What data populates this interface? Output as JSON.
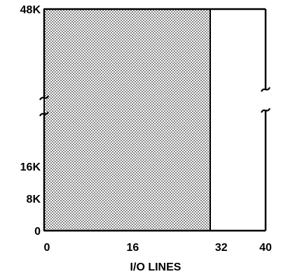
{
  "chart_data": {
    "type": "area",
    "title": "",
    "xlabel": "I/O LINES",
    "ylabel": "",
    "x_ticks": [
      {
        "value": 0,
        "label": "0"
      },
      {
        "value": 16,
        "label": "16"
      },
      {
        "value": 32,
        "label": "32"
      },
      {
        "value": 40,
        "label": "40"
      }
    ],
    "y_ticks": [
      {
        "value": 0,
        "label": "0"
      },
      {
        "value": 8,
        "label": "8K"
      },
      {
        "value": 16,
        "label": "16K"
      },
      {
        "value": 48,
        "label": "48K"
      }
    ],
    "xlim": [
      0,
      40
    ],
    "ylim": [
      0,
      48
    ],
    "y_axis_break": true,
    "grid": false,
    "regions": [
      {
        "x0": 0,
        "x1": 30,
        "y0": 0,
        "y1": 48,
        "fill": "dotted-gray"
      }
    ]
  }
}
